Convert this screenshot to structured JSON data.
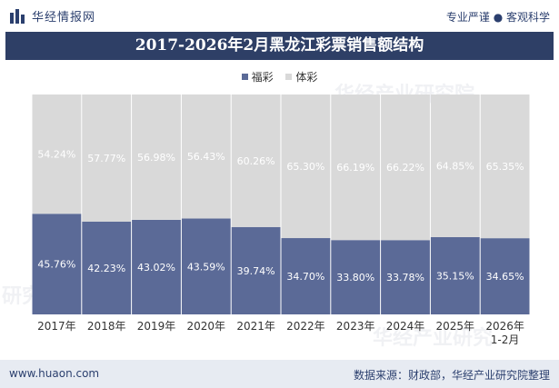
{
  "header": {
    "site_name": "华经情报网",
    "slogan": "专业严谨 ● 客观科学"
  },
  "chart_data": {
    "type": "bar",
    "stacked": true,
    "percent": true,
    "title": "2017-2026年2月黑龙江彩票销售额结构",
    "categories": [
      "2017年",
      "2018年",
      "2019年",
      "2020年",
      "2021年",
      "2022年",
      "2023年",
      "2024年",
      "2025年",
      "2026年\n1-2月"
    ],
    "series": [
      {
        "name": "福彩",
        "color": "#5b6a97",
        "values": [
          45.76,
          42.23,
          43.02,
          43.59,
          39.74,
          34.7,
          33.8,
          33.78,
          35.15,
          34.65
        ]
      },
      {
        "name": "体彩",
        "color": "#d9d9d9",
        "values": [
          54.24,
          57.77,
          56.98,
          56.43,
          60.26,
          65.3,
          66.19,
          66.22,
          64.85,
          65.35
        ]
      }
    ],
    "ylim": [
      0,
      100
    ],
    "legend_position": "top-center",
    "grid": false
  },
  "footer": {
    "url": "www.huaon.com",
    "source": "数据来源：财政部，华经产业研究院整理"
  }
}
